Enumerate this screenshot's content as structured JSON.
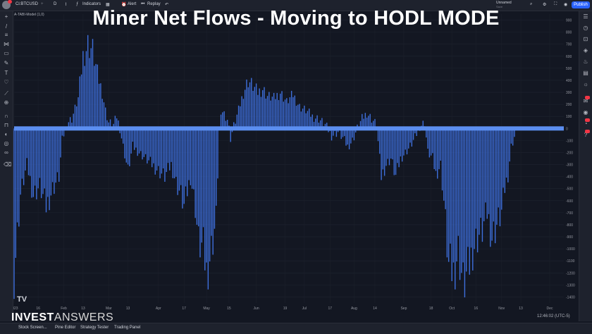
{
  "slide_title": "Miner Net Flows - Moving to HODL MODE",
  "topbar": {
    "symbol": "Ci:BTCUSD",
    "interval": "D",
    "indicators_label": "Indicators",
    "alert_label": "Alert",
    "replay_label": "Replay",
    "layout_name": "Unnamed",
    "layout_status": "Save",
    "publish_label": "Publish"
  },
  "indicator_label": "A-TABI-Model (1,0)",
  "watermark": {
    "invest": "INVEST",
    "answers": "ANSWERS"
  },
  "tv_logo": "TV",
  "bottombar": {
    "tabs": [
      "Stock Screen...",
      "Pine Editor",
      "Strategy Tester",
      "Trading Panel"
    ],
    "clock": "12:46:02 (UTC-5)"
  },
  "chart_data": {
    "type": "bar",
    "series_color": "#3e6fdc",
    "zero_line_color": "#5b8ef0",
    "ylim": [
      -1450,
      950
    ],
    "yticks": [
      900,
      800,
      700,
      600,
      500,
      400,
      300,
      200,
      100,
      0,
      -100,
      -200,
      -300,
      -400,
      -500,
      -600,
      -700,
      -800,
      -900,
      -1000,
      -1100,
      -1200,
      -1300,
      -1400
    ],
    "xlabels": [
      {
        "label": "2023",
        "day": 0
      },
      {
        "label": "16",
        "day": 15
      },
      {
        "label": "Feb",
        "day": 31
      },
      {
        "label": "13",
        "day": 43
      },
      {
        "label": "Mar",
        "day": 59
      },
      {
        "label": "13",
        "day": 71
      },
      {
        "label": "Apr",
        "day": 90
      },
      {
        "label": "17",
        "day": 106
      },
      {
        "label": "May",
        "day": 120
      },
      {
        "label": "15",
        "day": 134
      },
      {
        "label": "Jun",
        "day": 151
      },
      {
        "label": "19",
        "day": 169
      },
      {
        "label": "Jul",
        "day": 181
      },
      {
        "label": "17",
        "day": 197
      },
      {
        "label": "Aug",
        "day": 212
      },
      {
        "label": "14",
        "day": 225
      },
      {
        "label": "Sep",
        "day": 243
      },
      {
        "label": "18",
        "day": 260
      },
      {
        "label": "Oct",
        "day": 273
      },
      {
        "label": "16",
        "day": 288
      },
      {
        "label": "Nov",
        "day": 304
      },
      {
        "label": "13",
        "day": 316
      },
      {
        "label": "Dec",
        "day": 334
      }
    ],
    "anchors": [
      [
        0,
        -1200
      ],
      [
        4,
        -550
      ],
      [
        8,
        -300
      ],
      [
        12,
        -550
      ],
      [
        16,
        -480
      ],
      [
        20,
        -650
      ],
      [
        24,
        -500
      ],
      [
        28,
        -400
      ],
      [
        30,
        -100
      ],
      [
        33,
        50
      ],
      [
        36,
        80
      ],
      [
        40,
        250
      ],
      [
        43,
        600
      ],
      [
        46,
        700
      ],
      [
        49,
        650
      ],
      [
        52,
        450
      ],
      [
        55,
        300
      ],
      [
        57,
        150
      ],
      [
        59,
        50
      ],
      [
        62,
        30
      ],
      [
        64,
        100
      ],
      [
        66,
        0
      ],
      [
        68,
        -150
      ],
      [
        71,
        -350
      ],
      [
        74,
        -150
      ],
      [
        78,
        -200
      ],
      [
        82,
        -250
      ],
      [
        86,
        -300
      ],
      [
        90,
        -350
      ],
      [
        94,
        -400
      ],
      [
        98,
        -300
      ],
      [
        101,
        -450
      ],
      [
        104,
        -550
      ],
      [
        106,
        -650
      ],
      [
        110,
        -400
      ],
      [
        113,
        -650
      ],
      [
        115,
        -950
      ],
      [
        118,
        -1000
      ],
      [
        120,
        -1200
      ],
      [
        123,
        -1000
      ],
      [
        126,
        -750
      ],
      [
        128,
        0
      ],
      [
        130,
        150
      ],
      [
        133,
        80
      ],
      [
        135,
        -80
      ],
      [
        137,
        20
      ],
      [
        140,
        150
      ],
      [
        143,
        300
      ],
      [
        146,
        400
      ],
      [
        149,
        350
      ],
      [
        152,
        300
      ],
      [
        155,
        330
      ],
      [
        158,
        270
      ],
      [
        162,
        250
      ],
      [
        166,
        300
      ],
      [
        170,
        220
      ],
      [
        174,
        280
      ],
      [
        178,
        180
      ],
      [
        182,
        150
      ],
      [
        186,
        100
      ],
      [
        190,
        80
      ],
      [
        194,
        30
      ],
      [
        198,
        -60
      ],
      [
        202,
        -30
      ],
      [
        205,
        -80
      ],
      [
        208,
        -150
      ],
      [
        211,
        -100
      ],
      [
        214,
        0
      ],
      [
        217,
        80
      ],
      [
        220,
        130
      ],
      [
        223,
        80
      ],
      [
        226,
        30
      ],
      [
        229,
        -400
      ],
      [
        232,
        -300
      ],
      [
        235,
        -250
      ],
      [
        238,
        -400
      ],
      [
        241,
        -250
      ],
      [
        244,
        -200
      ],
      [
        247,
        -150
      ],
      [
        250,
        -80
      ],
      [
        253,
        20
      ],
      [
        256,
        50
      ],
      [
        258,
        -200
      ],
      [
        261,
        -250
      ],
      [
        263,
        -380
      ],
      [
        266,
        -300
      ],
      [
        268,
        -600
      ],
      [
        271,
        -1150
      ],
      [
        274,
        -1200
      ],
      [
        277,
        -1000
      ],
      [
        280,
        -1300
      ],
      [
        283,
        -1200
      ],
      [
        286,
        -1000
      ],
      [
        289,
        -900
      ],
      [
        292,
        -850
      ],
      [
        295,
        -700
      ],
      [
        298,
        -900
      ],
      [
        301,
        -800
      ],
      [
        304,
        -700
      ],
      [
        306,
        -500
      ],
      [
        308,
        -380
      ],
      [
        310,
        -150
      ],
      [
        313,
        -30
      ]
    ]
  }
}
